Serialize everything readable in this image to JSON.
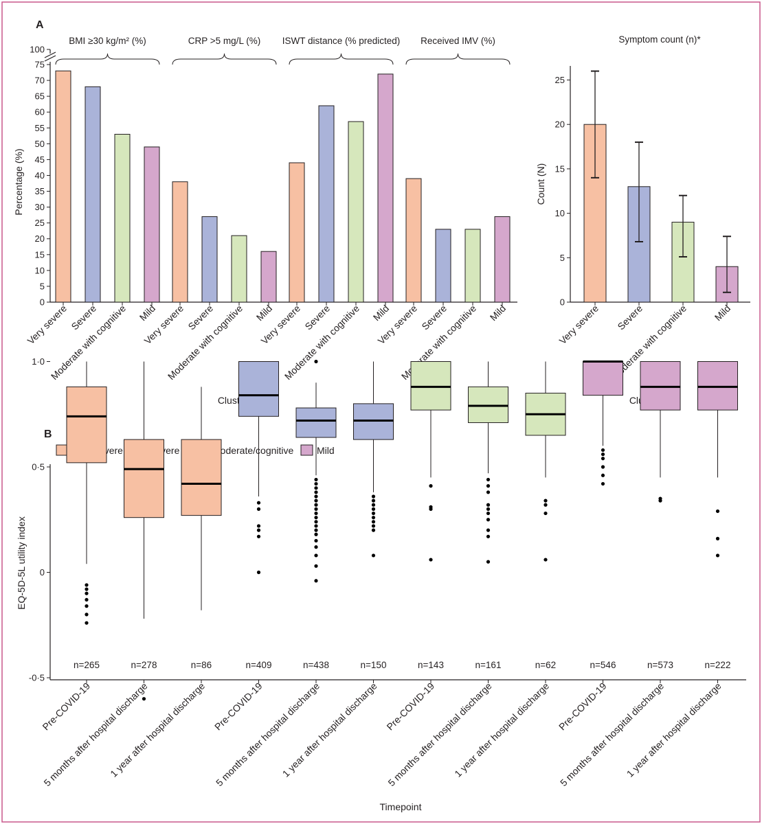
{
  "panels": {
    "a_letter": "A",
    "b_letter": "B"
  },
  "colors": {
    "frame": "#c8578a",
    "very_severe": "#f7c0a3",
    "severe": "#aab3d9",
    "moderate": "#d6e7bc",
    "mild": "#d5a7cc",
    "axis": "#231f20"
  },
  "chart_data": [
    {
      "type": "bar",
      "ylabel": "Percentage (%)",
      "xlabel": "Cluster",
      "ylim": [
        0,
        100
      ],
      "yticks": [
        "0",
        "5",
        "10",
        "15",
        "20",
        "25",
        "30",
        "35",
        "40",
        "45",
        "50",
        "55",
        "60",
        "65",
        "70",
        "75",
        "100"
      ],
      "axis_break": "between 75 and 100",
      "categories": [
        "Very severe",
        "Severe",
        "Moderate with cognitive",
        "Mild"
      ],
      "groups": [
        {
          "label": "BMI ≥30 kg/m² (%)",
          "values": [
            73,
            68,
            53,
            49
          ]
        },
        {
          "label": "CRP >5 mg/L (%)",
          "values": [
            38,
            27,
            21,
            16
          ]
        },
        {
          "label": "ISWT distance (% predicted)",
          "values": [
            44,
            62,
            57,
            72
          ]
        },
        {
          "label": "Received IMV (%)",
          "values": [
            39,
            23,
            23,
            27
          ]
        }
      ]
    },
    {
      "type": "bar",
      "title": "Symptom count (n)*",
      "ylabel": "Count (N)",
      "xlabel": "Cluster",
      "ylim": [
        0,
        27
      ],
      "yticks": [
        "0",
        "5",
        "10",
        "15",
        "20",
        "25"
      ],
      "categories": [
        "Very severe",
        "Severe",
        "Moderate with cognitive",
        "Mild"
      ],
      "values": [
        20,
        13,
        9,
        4
      ],
      "error_low": [
        14,
        6.8,
        5.1,
        1.1
      ],
      "error_high": [
        26,
        18,
        12,
        7.4
      ]
    },
    {
      "type": "box",
      "ylabel": "EQ-5D-5L utility index",
      "xlabel": "Timepoint",
      "ylim": [
        -0.8,
        1.0
      ],
      "yticks": [
        "-0·5",
        "0",
        "0·5",
        "1·0"
      ],
      "legend": [
        "Very severe",
        "Severe",
        "Moderate/cognitive",
        "Mild"
      ],
      "legend_placement": "top-left",
      "categories": [
        "Pre-COVID-19",
        "5 months after hospital discharge",
        "1 year after hospital discharge",
        "Pre-COVID-19",
        "5 months after hospital discharge",
        "1 year after hospital discharge",
        "Pre-COVID-19",
        "5 months after hospital discharge",
        "1 year after hospital discharge",
        "Pre-COVID-19",
        "5 months after hospital discharge",
        "1 year after hospital discharge"
      ],
      "boxes": [
        {
          "cluster": 0,
          "n": "n=265",
          "wlo": 0.04,
          "q1": 0.52,
          "med": 0.74,
          "q3": 0.88,
          "whi": 1.0,
          "out": [
            -0.06,
            -0.08,
            -0.1,
            -0.13,
            -0.16,
            -0.2,
            -0.24
          ]
        },
        {
          "cluster": 0,
          "n": "n=278",
          "wlo": -0.22,
          "q1": 0.26,
          "med": 0.49,
          "q3": 0.63,
          "whi": 1.0,
          "out": [
            -0.6
          ]
        },
        {
          "cluster": 0,
          "n": "n=86",
          "wlo": -0.18,
          "q1": 0.27,
          "med": 0.42,
          "q3": 0.63,
          "whi": 0.88,
          "out": []
        },
        {
          "cluster": 1,
          "n": "n=409",
          "wlo": 0.36,
          "q1": 0.74,
          "med": 0.84,
          "q3": 1.0,
          "whi": 1.0,
          "out": [
            0.33,
            0.3,
            0.22,
            0.2,
            0.17,
            0.0
          ]
        },
        {
          "cluster": 1,
          "n": "n=438",
          "wlo": 0.46,
          "q1": 0.64,
          "med": 0.72,
          "q3": 0.78,
          "whi": 0.9,
          "out": [
            1.0,
            0.44,
            0.42,
            0.4,
            0.38,
            0.36,
            0.34,
            0.32,
            0.3,
            0.28,
            0.26,
            0.24,
            0.22,
            0.2,
            0.18,
            0.15,
            0.12,
            0.08,
            0.03,
            -0.04
          ]
        },
        {
          "cluster": 1,
          "n": "n=150",
          "wlo": 0.38,
          "q1": 0.63,
          "med": 0.72,
          "q3": 0.8,
          "whi": 1.0,
          "out": [
            0.36,
            0.34,
            0.32,
            0.3,
            0.28,
            0.26,
            0.24,
            0.22,
            0.2,
            0.08
          ]
        },
        {
          "cluster": 2,
          "n": "n=143",
          "wlo": 0.45,
          "q1": 0.77,
          "med": 0.88,
          "q3": 1.0,
          "whi": 1.0,
          "out": [
            0.41,
            0.31,
            0.3,
            0.06
          ]
        },
        {
          "cluster": 2,
          "n": "n=161",
          "wlo": 0.47,
          "q1": 0.71,
          "med": 0.79,
          "q3": 0.88,
          "whi": 1.0,
          "out": [
            0.44,
            0.41,
            0.38,
            0.32,
            0.3,
            0.28,
            0.25,
            0.2,
            0.17,
            0.05
          ]
        },
        {
          "cluster": 2,
          "n": "n=62",
          "wlo": 0.45,
          "q1": 0.65,
          "med": 0.75,
          "q3": 0.85,
          "whi": 1.0,
          "out": [
            0.34,
            0.32,
            0.28,
            0.06
          ]
        },
        {
          "cluster": 3,
          "n": "n=546",
          "wlo": 0.6,
          "q1": 0.84,
          "med": 1.0,
          "q3": 1.0,
          "whi": 1.0,
          "out": [
            0.58,
            0.56,
            0.54,
            0.5,
            0.46,
            0.42
          ]
        },
        {
          "cluster": 3,
          "n": "n=573",
          "wlo": 0.45,
          "q1": 0.77,
          "med": 0.88,
          "q3": 1.0,
          "whi": 1.0,
          "out": [
            0.35,
            0.34
          ]
        },
        {
          "cluster": 3,
          "n": "n=222",
          "wlo": 0.45,
          "q1": 0.77,
          "med": 0.88,
          "q3": 1.0,
          "whi": 1.0,
          "out": [
            0.29,
            0.16,
            0.08
          ]
        }
      ]
    }
  ]
}
